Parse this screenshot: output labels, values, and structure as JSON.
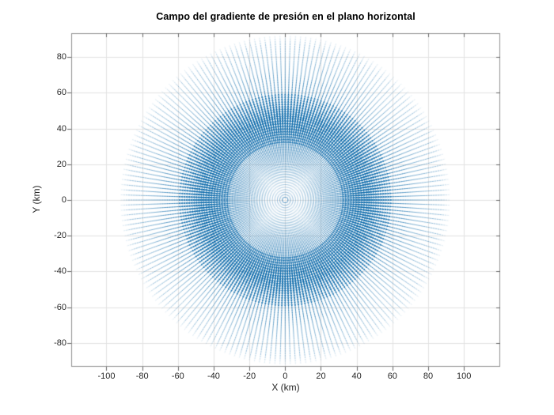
{
  "figure": {
    "background": "#ffffff"
  },
  "chart_data": {
    "type": "quiver",
    "title": "Campo del gradiente de presión en el plano horizontal",
    "xlabel": "X (km)",
    "ylabel": "Y (km)",
    "xlim": [
      -119.7,
      120.3
    ],
    "ylim": [
      -93.3,
      93.3
    ],
    "xticks": [
      -100,
      -80,
      -60,
      -40,
      -20,
      0,
      20,
      40,
      60,
      80,
      100
    ],
    "yticks": [
      -80,
      -60,
      -40,
      -20,
      0,
      20,
      40,
      60,
      80
    ],
    "grid": true,
    "legend": "none",
    "field": {
      "description": "Pressure-gradient vectors pointing radially outward from the low-pressure center at the origin; magnitude peaks on a ring at the radius of maximum gradient and decays toward the center and toward large radii.",
      "center_km": [
        0,
        0
      ],
      "direction": "radial-outward",
      "n_angles": 200,
      "r_min_km": 1.4,
      "r_step_km": 1.4,
      "r_max_km": 93,
      "peak_radius_km": 43,
      "max_arrow_length_km": 3.1,
      "magnitude_profile": {
        "r_km": [
          5,
          10,
          15,
          20,
          25,
          30,
          35,
          40,
          43,
          45,
          50,
          60,
          70,
          80,
          90
        ],
        "magnitude_normalized": [
          0.075,
          0.174,
          0.282,
          0.399,
          0.521,
          0.649,
          0.782,
          0.917,
          1.0,
          0.934,
          0.797,
          0.606,
          0.481,
          0.394,
          0.33
        ]
      }
    },
    "colors": {
      "arrow_base": "#0a69aa",
      "grid_line": "#e2e2e2",
      "axis_box": "#909090",
      "tick_mark": "#666666",
      "tick_label": "#262626",
      "title": "#000000",
      "plot_background": "#ffffff"
    }
  }
}
